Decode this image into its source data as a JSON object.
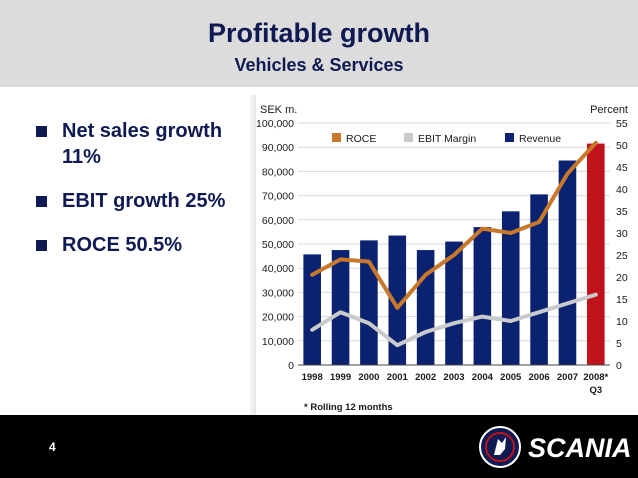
{
  "slide": {
    "title": "Profitable growth",
    "subtitle": "Vehicles & Services",
    "page_number": "4",
    "brand": "SCANIA",
    "bullets": [
      "Net sales growth 11%",
      "EBIT growth 25%",
      "ROCE 50.5%"
    ]
  },
  "colors": {
    "navy": "#0f1a52",
    "bar_blue": "#0a2270",
    "bar_highlight": "#c0121a",
    "roce": "#c8782a",
    "ebit_margin": "#c8cacc"
  },
  "chart_data": {
    "type": "bar",
    "left_unit_label": "SEK m.",
    "right_unit_label": "Percent",
    "footnote": "* Rolling 12 months",
    "categories": [
      "1998",
      "1999",
      "2000",
      "2001",
      "2002",
      "2003",
      "2004",
      "2005",
      "2006",
      "2007",
      "2008*"
    ],
    "category_sublabels": [
      "",
      "",
      "",
      "",
      "",
      "",
      "",
      "",
      "",
      "",
      "Q3"
    ],
    "left_axis": {
      "min": 0,
      "max": 100000,
      "ticks": [
        "0",
        "10,000",
        "20,000",
        "30,000",
        "40,000",
        "50,000",
        "60,000",
        "70,000",
        "80,000",
        "90,000",
        "100,000"
      ]
    },
    "right_axis": {
      "min": 0,
      "max": 55,
      "ticks": [
        "0",
        "5",
        "10",
        "15",
        "20",
        "25",
        "30",
        "35",
        "40",
        "45",
        "50",
        "55"
      ]
    },
    "legend": [
      "ROCE",
      "EBIT Margin",
      "Revenue"
    ],
    "series": [
      {
        "name": "Revenue",
        "axis": "left",
        "kind": "bar",
        "values": [
          45700,
          47500,
          51500,
          53500,
          47500,
          51000,
          57000,
          63500,
          70500,
          84500,
          91500
        ]
      },
      {
        "name": "ROCE",
        "axis": "right",
        "kind": "line",
        "values": [
          20.5,
          24,
          23.5,
          13,
          20.5,
          25,
          31,
          30,
          32.5,
          43.5,
          50.5
        ]
      },
      {
        "name": "EBIT Margin",
        "axis": "right",
        "kind": "line",
        "values": [
          8,
          12,
          9.5,
          4.5,
          7.5,
          9.5,
          11,
          10,
          12,
          14,
          16
        ]
      }
    ]
  }
}
